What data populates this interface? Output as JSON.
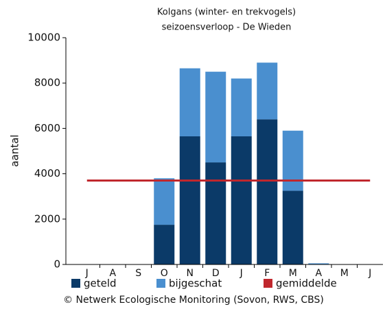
{
  "chart_data": {
    "type": "stacked_bar",
    "title": "Kolgans (winter- en trekvogels)",
    "subtitle": "seizoensverloop - De Wieden",
    "y_label": "aantal",
    "categories": [
      "J",
      "A",
      "S",
      "O",
      "N",
      "D",
      "J",
      "F",
      "M",
      "A",
      "M",
      "J"
    ],
    "series": [
      {
        "name": "geteld",
        "color": "#0b3a68",
        "values": [
          0,
          0,
          0,
          1750,
          5650,
          4500,
          5650,
          6400,
          3250,
          0,
          0,
          0
        ]
      },
      {
        "name": "bijgeschat",
        "color": "#4a8fcf",
        "values": [
          0,
          0,
          0,
          2050,
          3000,
          4000,
          2550,
          2500,
          2650,
          50,
          0,
          0
        ]
      }
    ],
    "average": {
      "name": "gemiddelde",
      "color": "#c0272d",
      "value": 3700
    },
    "ylim": [
      0,
      10000
    ],
    "yticks": [
      0,
      2000,
      4000,
      6000,
      8000,
      10000
    ],
    "footer": "© Netwerk Ecologische Monitoring (Sovon, RWS, CBS)"
  }
}
